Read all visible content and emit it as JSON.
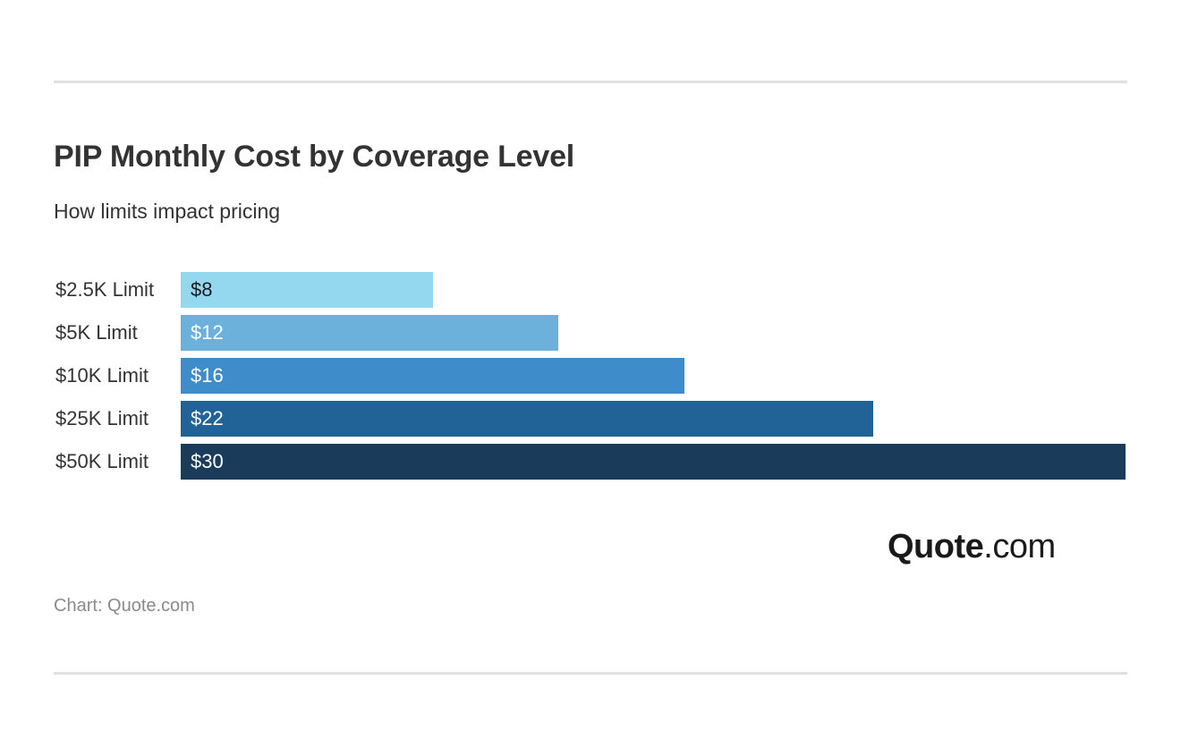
{
  "header": {
    "title": "PIP Monthly Cost by Coverage Level",
    "subtitle": "How limits impact pricing"
  },
  "chart_data": {
    "type": "bar",
    "orientation": "horizontal",
    "title": "PIP Monthly Cost by Coverage Level",
    "subtitle": "How limits impact pricing",
    "categories": [
      "$2.5K Limit",
      "$5K Limit",
      "$10K Limit",
      "$25K Limit",
      "$50K Limit"
    ],
    "values": [
      8,
      12,
      16,
      22,
      30
    ],
    "value_labels": [
      "$8",
      "$12",
      "$16",
      "$22",
      "$30"
    ],
    "colors": [
      "#94d8ef",
      "#6cb1dc",
      "#3f8ccb",
      "#226397",
      "#1b3b5a"
    ],
    "label_colors": [
      "#1a1a1a",
      "#ffffff",
      "#ffffff",
      "#ffffff",
      "#ffffff"
    ],
    "xlim": [
      0,
      30
    ],
    "xlabel": "",
    "ylabel": "",
    "grid": false,
    "legend": false
  },
  "logo": {
    "brand": "Quote",
    "tld": ".com"
  },
  "footer": {
    "source": "Chart: Quote.com"
  }
}
